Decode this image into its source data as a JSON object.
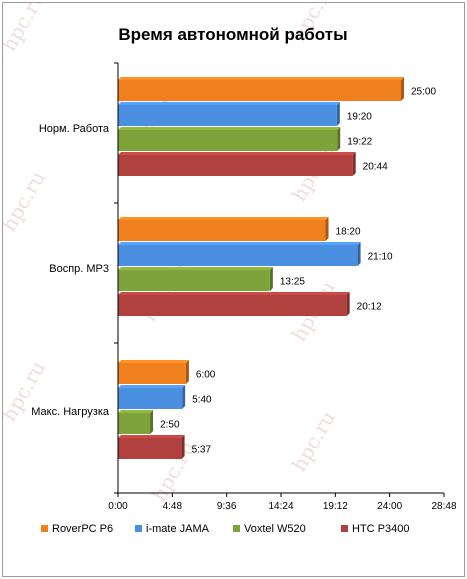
{
  "watermark": "hpc.ru",
  "chart_data": {
    "type": "bar",
    "orientation": "horizontal",
    "title": "Время автономной работы",
    "xlabel": "",
    "ylabel": "",
    "categories": [
      "Норм. Работа",
      "Воспр. MP3",
      "Макс. Нагрузка"
    ],
    "unit": "hours:minutes",
    "xlim": [
      0,
      28.8
    ],
    "xticks": [
      0,
      4.8,
      9.6,
      14.4,
      19.2,
      24,
      28.8
    ],
    "xtick_labels": [
      "0:00",
      "4:48",
      "9:36",
      "14:24",
      "19:12",
      "24:00",
      "28:48"
    ],
    "grid": false,
    "legend_position": "bottom",
    "series": [
      {
        "name": "RoverPC P6",
        "color": "#f07f1e",
        "values": [
          25.0,
          18.333,
          6.0
        ],
        "labels": [
          "25:00",
          "18:20",
          "6:00"
        ]
      },
      {
        "name": "i-mate JAMA",
        "color": "#4a8fe0",
        "values": [
          19.333,
          21.167,
          5.667
        ],
        "labels": [
          "19:20",
          "21:10",
          "5:40"
        ]
      },
      {
        "name": "Voxtel W520",
        "color": "#7da33a",
        "values": [
          19.367,
          13.417,
          2.833
        ],
        "labels": [
          "19:22",
          "13:25",
          "2:50"
        ]
      },
      {
        "name": "HTC P3400",
        "color": "#b0413e",
        "values": [
          20.733,
          20.2,
          5.617
        ],
        "labels": [
          "20:44",
          "20:12",
          "5:37"
        ]
      }
    ]
  }
}
